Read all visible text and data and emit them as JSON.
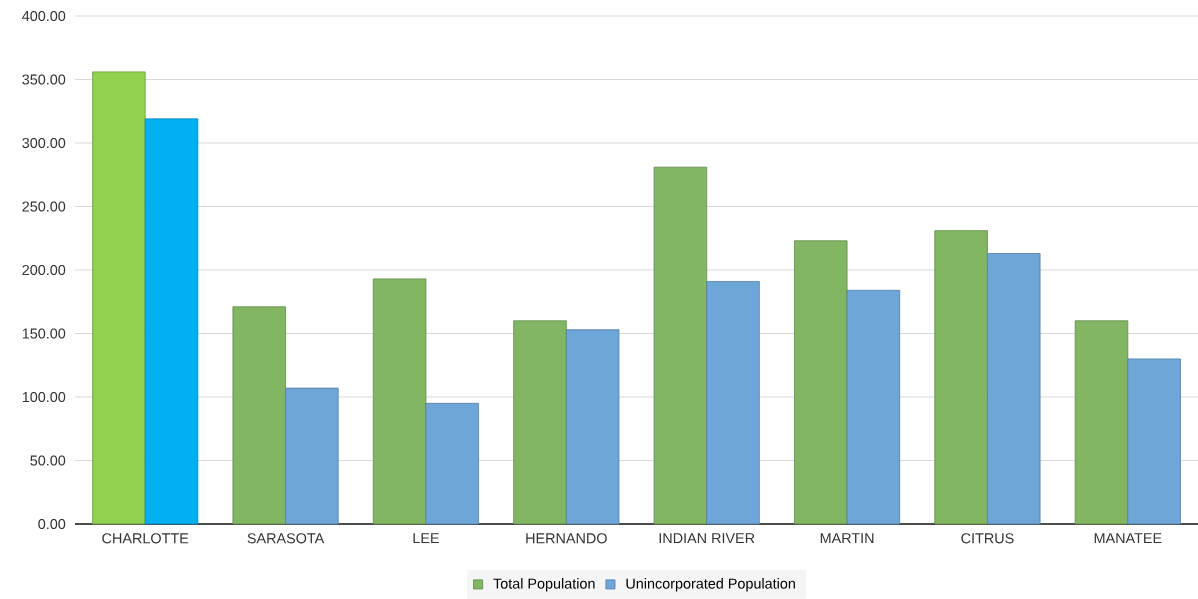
{
  "chart_data": {
    "type": "bar",
    "categories": [
      "CHARLOTTE",
      "SARASOTA",
      "LEE",
      "HERNANDO",
      "INDIAN RIVER",
      "MARTIN",
      "CITRUS",
      "MANATEE"
    ],
    "series": [
      {
        "name": "Total Population",
        "color": "#82b662",
        "colors": [
          "#92d050",
          "#82b662",
          "#82b662",
          "#82b662",
          "#82b662",
          "#82b662",
          "#82b662",
          "#82b662"
        ],
        "values": [
          356,
          171,
          193,
          160,
          281,
          223,
          231,
          160
        ]
      },
      {
        "name": "Unincorporated Population",
        "color": "#6fa6da",
        "colors": [
          "#00b0f0",
          "#6fa6da",
          "#6fa6da",
          "#6fa6da",
          "#6fa6da",
          "#6fa6da",
          "#6fa6da",
          "#6fa6da"
        ],
        "values": [
          319,
          107,
          95,
          153,
          191,
          184,
          213,
          130
        ]
      }
    ],
    "ylim": [
      0,
      400
    ],
    "yticks": [
      {
        "value": 0,
        "label": "0.00"
      },
      {
        "value": 50,
        "label": "50.00"
      },
      {
        "value": 100,
        "label": "100.00"
      },
      {
        "value": 150,
        "label": "150.00"
      },
      {
        "value": 200,
        "label": "200.00"
      },
      {
        "value": 250,
        "label": "250.00"
      },
      {
        "value": 300,
        "label": "300.00"
      },
      {
        "value": 350,
        "label": "350.00"
      },
      {
        "value": 400,
        "label": "400.00"
      }
    ],
    "grid": "y",
    "legend": "bottom"
  }
}
